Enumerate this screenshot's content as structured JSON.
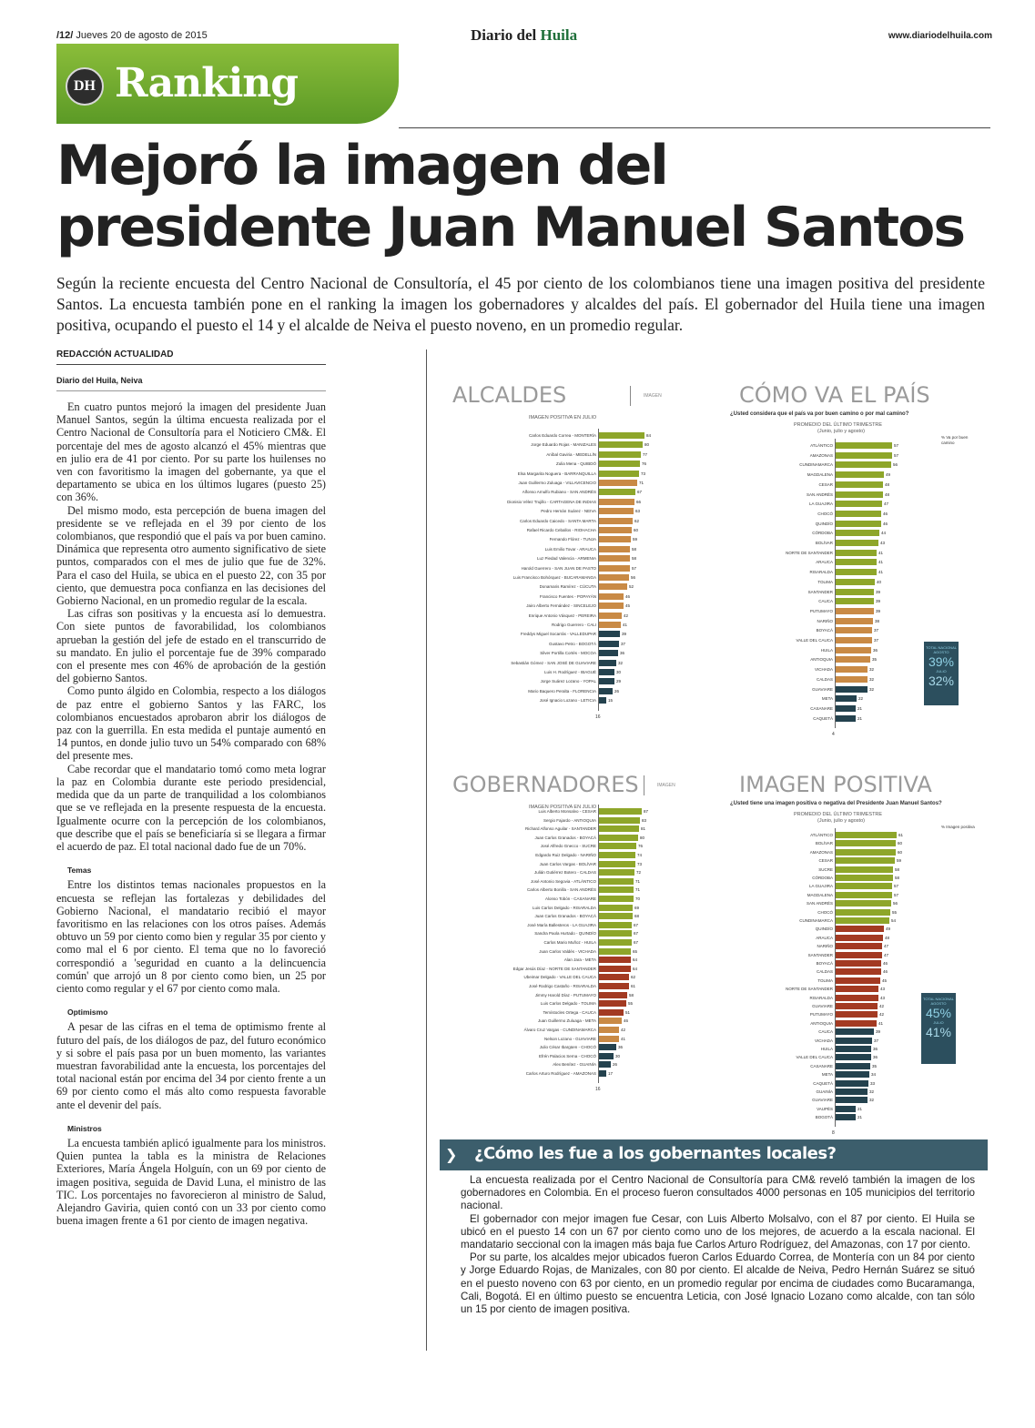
{
  "page": {
    "number": "/12/",
    "date": "Jueves 20 de agosto de 2015",
    "newspaper_a": "Diario del ",
    "newspaper_b": "Huila",
    "website": "www.diariodelhuila.com",
    "badge": "DH",
    "section": "Ranking"
  },
  "article": {
    "headline_1": "Mejoró la imagen del",
    "headline_2": "presidente Juan Manuel Santos",
    "lede": "Según la reciente encuesta del Centro Nacional de Consultoría, el 45 por ciento de los colombianos tiene una imagen positiva del presidente Santos. La encuesta también pone en el ranking la imagen los gobernadores y alcaldes del país. El gobernador del Huila tiene una imagen positiva, ocupando el puesto el 14 y el alcalde de Neiva el puesto noveno, en un promedio regular.",
    "byline": "REDACCIÓN ACTUALIDAD",
    "dateline": "Diario del Huila, Neiva",
    "paragraphs": [
      "En cuatro puntos mejoró la imagen del presidente Juan Manuel Santos, según la última encuesta realizada por el Centro Nacional de Consultoría para el Noticiero CM&. El porcentaje del mes de agosto alcanzó el 45% mientras que en julio era de 41 por ciento. Por su parte los huilenses no ven con favoritismo la imagen del gobernante, ya que el departamento se ubica en los últimos lugares (puesto 25) con 36%.",
      "Del mismo modo, esta percepción de buena imagen del presidente se ve reflejada en el 39 por ciento de los colombianos, que respondió que el país va por buen camino. Dinámica que representa otro aumento significativo de siete puntos, comparados con el mes de julio que fue de 32%. Para el caso del Huila, se ubica en el puesto 22, con 35 por ciento, que demuestra poca confianza en las decisiones del Gobierno Nacional, en un promedio regular de la escala.",
      "Las cifras son positivas y la encuesta así lo demuestra. Con siete puntos de favorabilidad, los colombianos aprueban la gestión del jefe de estado en el transcurrido de su mandato. En julio el porcentaje fue de 39% comparado con el presente mes con 46% de aprobación de la gestión del gobierno Santos.",
      "Como punto álgido en Colombia, respecto a los diálogos de paz entre el gobierno Santos y las FARC, los colombianos encuestados aprobaron abrir los diálogos de paz con la guerrilla. En esta medida el puntaje aumentó en 14 puntos, en donde julio tuvo un 54% comparado con 68% del presente mes.",
      "Cabe recordar que el mandatario tomó como meta lograr la paz en Colombia durante este periodo presidencial, medida que da un parte de tranquilidad a los colombianos que se ve reflejada en la presente respuesta de la encuesta. Igualmente ocurre con la percepción de los colombianos, que describe que el país se beneficiaría si se llegara a firmar el acuerdo de paz. El total nacional dado fue de un 70%."
    ],
    "subhead_temas": "Temas",
    "temas": "Entre los distintos temas nacionales propuestos en la encuesta se reflejan las fortalezas y debilidades del Gobierno Nacional, el mandatario recibió el mayor favoritismo en las relaciones con los otros países. Además obtuvo un 59 por ciento como bien y regular 35 por ciento y como mal el 6 por ciento. El tema que no lo favoreció correspondió a 'seguridad en cuanto a la delincuencia común' que arrojó un 8 por ciento como bien, un 25 por ciento como regular y el 67 por ciento como mala.",
    "subhead_optimismo": "Optimismo",
    "optimismo": "A pesar de las cifras en el tema de optimismo frente al futuro del país, de los diálogos de paz, del futuro económico y si sobre el país pasa por un buen momento, las variantes muestran favorabilidad ante la encuesta, los porcentajes del total nacional están por encima del 34 por ciento frente a un 69 por ciento como el más alto como respuesta favorable ante el devenir del país.",
    "subhead_ministros": "Ministros",
    "ministros": "La encuesta también aplicó igualmente para los ministros. Quien puntea la tabla es la ministra de Relaciones Exteriores, María Ángela Holguín, con un 69 por ciento de imagen positiva, seguida de David Luna, el ministro de las TIC. Los porcentajes no favorecieron al ministro de Salud, Alejandro Gaviria, quien contó con un 33 por ciento como buena imagen frente a 61 por ciento de imagen negativa."
  },
  "box": {
    "title": "¿Cómo les fue a los gobernantes locales?",
    "paragraphs": [
      "La encuesta realizada por el Centro Nacional de Consultoría para CM& reveló también la imagen de los gobernadores en Colombia. En el proceso fueron consultados 4000 personas en 105 municipios del territorio nacional.",
      "El gobernador con mejor imagen fue Cesar, con Luis Alberto Molsalvo, con el 87 por ciento. El Huila se ubicó en el puesto 14 con un 67 por ciento como uno de los mejores, de acuerdo a la escala nacional. El mandatario seccional con la imagen más baja fue Carlos Arturo Rodríguez, del Amazonas, con 17 por ciento.",
      "Por su parte, los alcaldes mejor ubicados fueron Carlos Eduardo Correa, de Montería con un 84 por ciento y Jorge Eduardo Rojas, de Manizales, con 80 por ciento. El alcalde de Neiva, Pedro Hernán Suárez se situó en el puesto noveno con 63 por ciento, en un promedio regular por encima de ciudades como Bucaramanga, Cali, Bogotá. El en último puesto se encuentra Leticia, con José Ignacio Lozano como alcalde, con tan sólo un 15 por ciento de imagen positiva."
    ]
  },
  "colors": {
    "green": "#8ea62a",
    "orange": "#c98a45",
    "red": "#a33a22",
    "teal": "#24424e",
    "section_green": "#6aa52c"
  },
  "chart_data": [
    {
      "type": "bar",
      "title": "ALCALDES",
      "tag": "IMAGEN",
      "subtitle": "IMAGEN POSITIVA EN JULIO",
      "orientation": "horizontal",
      "axis_start": "16",
      "categories": [
        "Carlos Eduardo Correa - MONTERÍA",
        "Jorge Eduardo Rojas - MANIZALES",
        "Aníbal Gaviria - MEDELLÍN",
        "Zulia Mena - QUIBDÓ",
        "Elsa Margarita Noguera - BARRANQUILLA",
        "Juan Guillermo Zuluaga - VILLAVICENCIO",
        "Alfonso Arnulfo Rubiano - SAN ANDRÉS",
        "Dionisio Vélez Trujillo - CARTAGENA DE INDIAS",
        "Pedro Hernán Suárez - NEIVA",
        "Carlos Eduardo Caicedo - SANTA MARTA",
        "Rafael Ricardo Ceballos - RIOHACHA",
        "Fernando Flórez - TUNJA",
        "Luis Emilio Tovar - ARAUCA",
        "Luz Piedad Valencia - ARMENIA",
        "Harold Guerrero - SAN JUAN DE PASTO",
        "Luis Francisco Bohórquez - BUCARAMANGA",
        "Donamaris Ramírez - CÚCUTA",
        "Francisco Fuentes - POPAYÁN",
        "Jairo Alberto Fernández - SINCELEJO",
        "Enrique Antonio Vásquez - PEREIRA",
        "Rodrigo Guerrero - CALI",
        "Freddys Miguel Socarrás - VALLEDUPAR",
        "Gustavo Petro - BOGOTÁ",
        "Silver Portilla Cortés - MOCOA",
        "Sebastián Gómez - SAN JOSÉ DE GUAVIARE",
        "Luis H. Rodríguez - IBAGUÉ",
        "Jorge Suárez Lozano - YOPAL",
        "Mario Baquero Peralta - FLORENCIA",
        "José Ignacio Lozano - LETICIA"
      ],
      "values": [
        84,
        80,
        77,
        76,
        73,
        71,
        67,
        66,
        63,
        62,
        60,
        59,
        58,
        58,
        57,
        56,
        52,
        46,
        45,
        42,
        41,
        39,
        37,
        36,
        32,
        30,
        29,
        26,
        15
      ],
      "colors": [
        "green",
        "green",
        "green",
        "green",
        "green",
        "orange",
        "green",
        "orange",
        "orange",
        "orange",
        "orange",
        "orange",
        "orange",
        "orange",
        "orange",
        "orange",
        "orange",
        "orange",
        "orange",
        "orange",
        "orange",
        "teal",
        "teal",
        "teal",
        "teal",
        "teal",
        "teal",
        "teal",
        "teal"
      ]
    },
    {
      "type": "bar",
      "title": "CÓMO VA EL PAÍS",
      "question": "¿Usted considera que el país va por buen camino o por mal camino?",
      "subtitle": "PROMEDIO DEL ÚLTIMO TRIMESTRE",
      "subtitle2": "(Junio, julio y agosto)",
      "unit_note": "% Va por buen camino",
      "orientation": "horizontal",
      "axis_start": "4",
      "categories": [
        "ATLÁNTICO",
        "AMAZONAS",
        "CUNDINAMARCA",
        "MAGDALENA",
        "CESAR",
        "SAN ANDRÉS",
        "LA GUAJIRA",
        "CHOCÓ",
        "QUINDÍO",
        "CÓRDOBA",
        "BOLÍVAR",
        "NORTE DE SANTANDER",
        "ARAUCA",
        "RISARALDA",
        "TOLIMA",
        "SANTANDER",
        "CAUCA",
        "PUTUMAYO",
        "NARIÑO",
        "BOYACÁ",
        "VALLE DEL CAUCA",
        "HUILA",
        "ANTIOQUIA",
        "VICHADA",
        "CALDAS",
        "GUAVIARE",
        "META",
        "CASANARE",
        "CAQUETÁ"
      ],
      "values": [
        57,
        57,
        56,
        49,
        48,
        48,
        47,
        46,
        46,
        44,
        43,
        41,
        41,
        41,
        40,
        39,
        39,
        39,
        38,
        37,
        37,
        36,
        35,
        32,
        32,
        32,
        22,
        21,
        21
      ],
      "colors": [
        "green",
        "green",
        "green",
        "green",
        "green",
        "green",
        "green",
        "green",
        "green",
        "green",
        "green",
        "green",
        "green",
        "green",
        "green",
        "green",
        "green",
        "orange",
        "orange",
        "orange",
        "orange",
        "orange",
        "orange",
        "orange",
        "orange",
        "teal",
        "teal",
        "teal",
        "teal"
      ],
      "legend": {
        "label_a": "TOTAL NACIONAL AGOSTO",
        "value_a": "39%",
        "label_b": "JULIO",
        "value_b": "32%"
      }
    },
    {
      "type": "bar",
      "title": "GOBERNADORES",
      "tag": "IMAGEN",
      "subtitle": "IMAGEN POSITIVA EN JULIO",
      "orientation": "horizontal",
      "axis_start": "16",
      "categories": [
        "Luis Alberto Monsalvo - CESAR",
        "Sergio Fajardo - ANTIOQUIA",
        "Richard Alfonso Aguilar - SANTANDER",
        "Juan Carlos Granados - BOYACÁ",
        "José Alfredo Gnecco - SUCRE",
        "Edgardo Ruiz Delgado - NARIÑO",
        "Juan Carlos Vargas - BOLÍVAR",
        "Julián Gutiérrez Botero - CALDAS",
        "José Antonio Segovia - ATLÁNTICO",
        "Carlos Alberto Bonilla - SAN ANDRÉS",
        "Alonso Tobón - CASANARE",
        "Luis Carlos Delgado - RISARALDA",
        "Juan Carlos Granados - BOYACÁ",
        "José María Ballesteros - LA GUAJIRA",
        "Sandra Paola Hurtado - QUINDÍO",
        "Carlos Mario Muñoz - HUILA",
        "Juan Carlos Valdés - VICHADA",
        "Alan Jara - META",
        "Edgar Jesús Díaz - NORTE DE SANTANDER",
        "Ubeimar Delgado - VALLE DEL CAUCA",
        "José Rodrigo Castaño - RISARALDA",
        "Jimmy Harold Díaz - PUTUMAYO",
        "Luis Carlos Delgado - TOLIMA",
        "Temístocles Ortega - CAUCA",
        "Juan Guillermo Zuluaga - META",
        "Álvaro Cruz Vargas - CUNDINAMARCA",
        "Nelson Lozano - GUAVIARE",
        "Julio César Ibargüen - CHOCÓ",
        "Efrén Palacios Serna - CHOCÓ",
        "Alex Benítez - GUAINÍA",
        "Carlos Arturo Rodríguez - AMAZONAS"
      ],
      "values": [
        87,
        83,
        81,
        80,
        76,
        74,
        73,
        72,
        71,
        71,
        70,
        69,
        68,
        67,
        67,
        67,
        65,
        64,
        64,
        62,
        61,
        58,
        55,
        51,
        46,
        42,
        41,
        36,
        30,
        26,
        17
      ],
      "colors": [
        "green",
        "green",
        "green",
        "green",
        "green",
        "green",
        "green",
        "green",
        "green",
        "green",
        "green",
        "green",
        "green",
        "green",
        "green",
        "green",
        "green",
        "red",
        "red",
        "red",
        "red",
        "red",
        "red",
        "red",
        "orange",
        "orange",
        "orange",
        "teal",
        "teal",
        "teal",
        "teal"
      ]
    },
    {
      "type": "bar",
      "title": "IMAGEN POSITIVA",
      "question": "¿Usted tiene una imagen positiva o negativa del Presidente Juan Manuel Santos?",
      "subtitle": "PROMEDIO DEL ÚLTIMO TRIMESTRE",
      "subtitle2": "(Junio, julio y agosto)",
      "unit_note": "% Imagen positiva",
      "orientation": "horizontal",
      "axis_start": "8",
      "categories": [
        "ATLÁNTICO",
        "BOLÍVAR",
        "AMAZONAS",
        "CESAR",
        "SUCRE",
        "CÓRDOBA",
        "LA GUAJIRA",
        "MAGDALENA",
        "SAN ANDRÉS",
        "CHOCÓ",
        "CUNDINAMARCA",
        "QUINDÍO",
        "ARAUCA",
        "NARIÑO",
        "SANTANDER",
        "BOYACÁ",
        "CALDAS",
        "TOLIMA",
        "NORTE DE SANTANDER",
        "RISARALDA",
        "GUAVIARE",
        "PUTUMAYO",
        "ANTIOQUIA",
        "CAUCA",
        "VICHADA",
        "HUILA",
        "VALLE DEL CAUCA",
        "CASANARE",
        "META",
        "CAQUETÁ",
        "GUAINÍA",
        "GUAVIARE",
        "VAUPÉS",
        "BOGOTÁ"
      ],
      "values": [
        61,
        60,
        60,
        59,
        58,
        58,
        57,
        57,
        56,
        55,
        54,
        49,
        48,
        47,
        47,
        46,
        46,
        45,
        43,
        43,
        42,
        42,
        41,
        39,
        37,
        36,
        36,
        35,
        34,
        33,
        32,
        32,
        21,
        21
      ],
      "colors": [
        "green",
        "green",
        "green",
        "green",
        "green",
        "green",
        "green",
        "green",
        "green",
        "green",
        "green",
        "red",
        "red",
        "red",
        "red",
        "red",
        "red",
        "red",
        "red",
        "red",
        "red",
        "red",
        "red",
        "teal",
        "teal",
        "teal",
        "teal",
        "teal",
        "teal",
        "teal",
        "teal",
        "teal",
        "teal",
        "teal"
      ],
      "legend": {
        "label_a": "TOTAL NACIONAL AGOSTO",
        "value_a": "45%",
        "label_b": "JULIO",
        "value_b": "41%"
      }
    }
  ]
}
